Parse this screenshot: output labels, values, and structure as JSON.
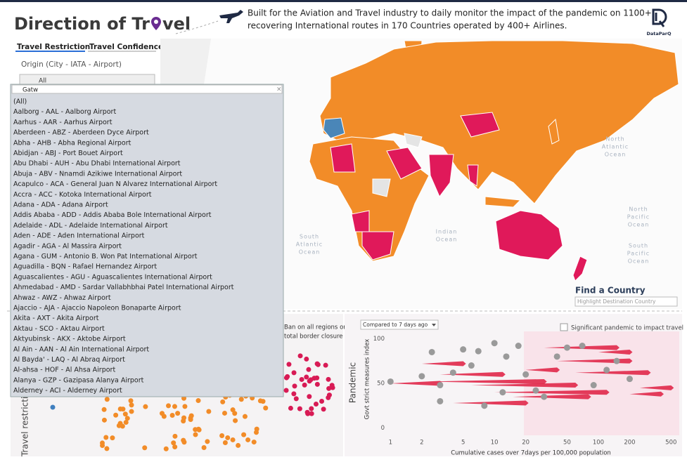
{
  "header": {
    "title_start": "Direction of Tr",
    "title_end": "vel",
    "description": [
      "Built for the Aviation and Travel industry to daily monitor the impact of the pandemic on 1100+",
      "recovering International routes in 170 Countries operated by 400+ Airlines."
    ],
    "logo": "DataParQ"
  },
  "tabs": [
    "Travel Restriction",
    "Travel Confidence"
  ],
  "origin": {
    "label": "Origin  (City - IATA - Airport)",
    "selected": "All",
    "search": "Gatw",
    "options": [
      "(All)",
      "Aalborg - AAL - Aalborg Airport",
      "Aarhus - AAR - Aarhus Airport",
      "Aberdeen - ABZ - Aberdeen Dyce Airport",
      "Abha - AHB - Abha Regional Airport",
      "Abidjan - ABJ - Port Bouet Airport",
      "Abu Dhabi - AUH - Abu Dhabi International Airport",
      "Abuja - ABV - Nnamdi Azikiwe International Airport",
      "Acapulco - ACA - General Juan N Alvarez International Airport",
      "Accra - ACC - Kotoka International Airport",
      "Adana - ADA - Adana Airport",
      "Addis Ababa - ADD - Addis Ababa Bole International Airport",
      "Adelaide - ADL - Adelaide International Airport",
      "Aden - ADE - Aden International Airport",
      "Agadir - AGA - Al Massira Airport",
      "Agana - GUM - Antonio B. Won Pat International Airport",
      "Aguadilla - BQN - Rafael Hernandez Airport",
      "Aguascalientes - AGU - Aguascalientes International Airport",
      "Ahmedabad - AMD - Sardar Vallabhbhai Patel International Airport",
      "Ahwaz - AWZ - Ahwaz Airport",
      "Ajaccio - AJA - Ajaccio Napoleon Bonaparte Airport",
      "Akita - AXT - Akita Airport",
      "Aktau - SCO - Aktau Airport",
      "Aktyubinsk - AKX - Aktobe Airport",
      "Al Ain - AAN - Al Ain International Airport",
      "Al Bayda' - LAQ - Al Abraq Airport",
      "Al-ahsa - HOF - Al Ahsa Airport",
      "Alanya - GZP - Gazipasa Alanya Airport",
      "Alderney - ACI - Alderney Airport"
    ]
  },
  "map": {
    "ocean_labels": [
      [
        "North",
        "Atlantic",
        "Ocean"
      ],
      [
        "South",
        "Atlantic",
        "Ocean"
      ],
      [
        "Indian",
        "Ocean"
      ],
      [
        "North",
        "Pacific",
        "Ocean"
      ],
      [
        "South",
        "Pacific",
        "Ocean"
      ]
    ],
    "find_title": "Find a Country",
    "find_placeholder": "Highlight Destination Country"
  },
  "restriction_panel": {
    "axis_label": "Travel restriction",
    "column_label": [
      "Ban on all regions or",
      "total border closure"
    ]
  },
  "pandemic_chart": {
    "type": "scatter",
    "title": "Pandemic",
    "compare_option": "Compared to 7 days ago",
    "checkbox_label": "Significant pandemic to impact travel",
    "xlabel": "Cumulative cases over 7days per 100,000 population",
    "ylabel": "Govt strict measures index",
    "log_x": true,
    "xlim": [
      0.8,
      600
    ],
    "ylim": [
      -5,
      105
    ],
    "xticks": [
      1,
      2,
      5,
      10,
      20,
      50,
      100,
      200,
      500
    ],
    "yticks": [
      0,
      50,
      100
    ],
    "points": {
      "color": "#9a9a9a",
      "x": [
        1,
        2,
        3,
        4,
        5,
        7,
        10,
        13,
        17,
        20,
        25,
        30,
        40,
        50,
        70,
        90,
        120,
        150,
        200,
        3,
        8,
        12,
        2.5,
        6
      ],
      "y": [
        52,
        58,
        48,
        62,
        88,
        86,
        95,
        80,
        92,
        60,
        42,
        35,
        80,
        90,
        92,
        48,
        65,
        75,
        55,
        30,
        25,
        40,
        85,
        70
      ]
    },
    "arrows": {
      "color": "#e0284a",
      "from_x": [
        2,
        3,
        2.3,
        6,
        10,
        30,
        40,
        60,
        15,
        4,
        100,
        200,
        1,
        20,
        250
      ],
      "to_x": [
        5,
        12,
        30,
        60,
        120,
        150,
        200,
        300,
        80,
        20,
        200,
        400,
        3,
        40,
        500
      ],
      "y": [
        72,
        60,
        52,
        48,
        40,
        90,
        75,
        62,
        35,
        28,
        85,
        38,
        50,
        65,
        45
      ]
    }
  }
}
